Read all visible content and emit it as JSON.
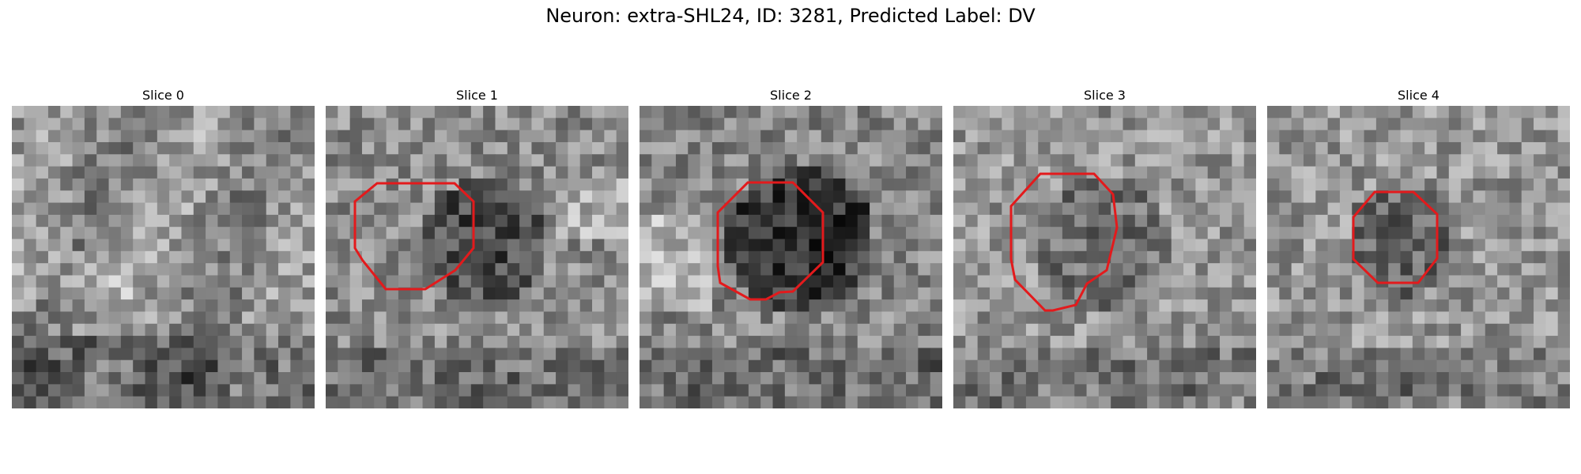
{
  "figure": {
    "title": "Neuron: extra-SHL24, ID: 3281, Predicted Label: DV"
  },
  "panels": [
    {
      "title": "Slice 0",
      "has_contour": false
    },
    {
      "title": "Slice 1",
      "has_contour": true
    },
    {
      "title": "Slice 2",
      "has_contour": true
    },
    {
      "title": "Slice 3",
      "has_contour": true
    },
    {
      "title": "Slice 4",
      "has_contour": true
    }
  ],
  "colors": {
    "contour": "#e31a1c",
    "colormap": "grayscale"
  }
}
